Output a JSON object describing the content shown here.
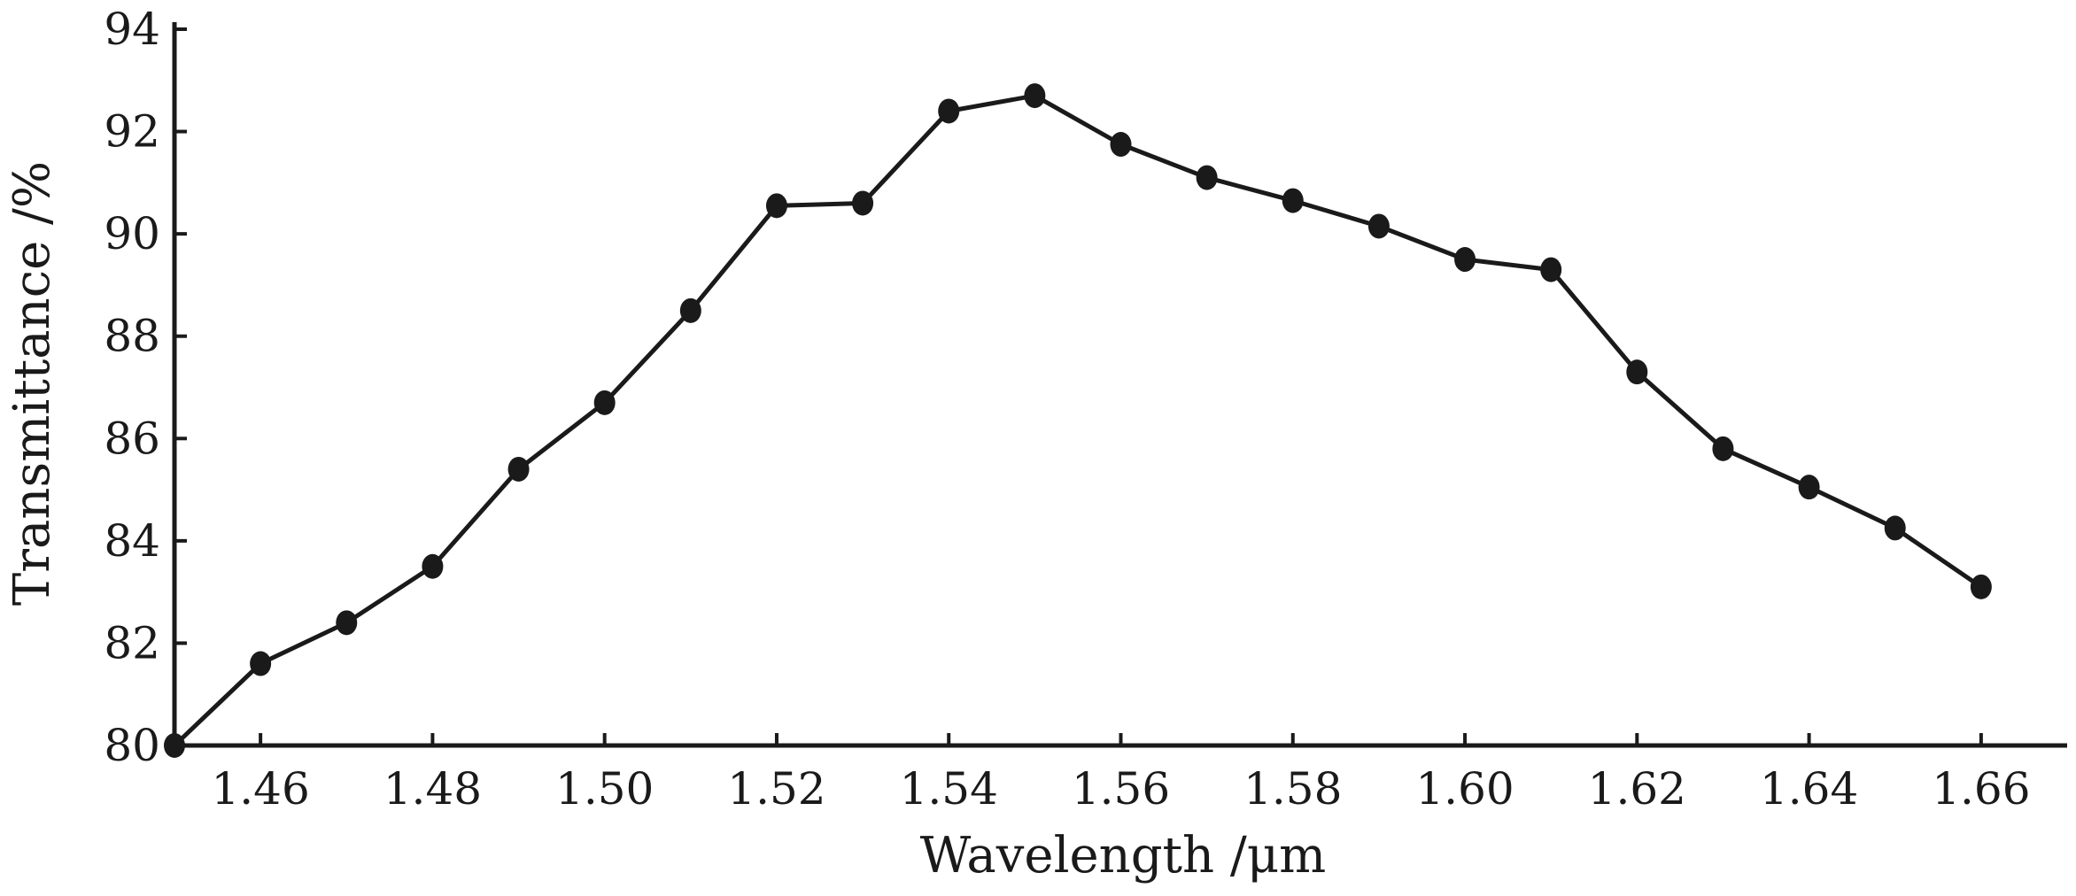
{
  "chart_data": {
    "type": "line",
    "title": "",
    "xlabel": "Wavelength /μm",
    "ylabel": "Transmittance /%",
    "xlim": [
      1.45,
      1.67
    ],
    "ylim": [
      80,
      94
    ],
    "x_ticks": [
      "1.46",
      "1.48",
      "1.50",
      "1.52",
      "1.54",
      "1.56",
      "1.58",
      "1.60",
      "1.62",
      "1.64",
      "1.66"
    ],
    "y_ticks": [
      "80",
      "82",
      "84",
      "86",
      "88",
      "90",
      "92",
      "94"
    ],
    "grid": false,
    "legend": "none",
    "series": [
      {
        "x": [
          1.45,
          1.46,
          1.47,
          1.48,
          1.49,
          1.5,
          1.51,
          1.52,
          1.53,
          1.54,
          1.55,
          1.56,
          1.57,
          1.58,
          1.59,
          1.6,
          1.61,
          1.62,
          1.63,
          1.64,
          1.65,
          1.66
        ],
        "y": [
          80.0,
          81.6,
          82.4,
          83.5,
          85.4,
          86.7,
          88.5,
          90.55,
          90.6,
          92.4,
          92.7,
          91.75,
          91.1,
          90.65,
          90.15,
          89.5,
          89.3,
          87.3,
          85.8,
          85.05,
          84.25,
          83.1
        ],
        "color": "#1a1a1a",
        "marker": "circle"
      }
    ]
  }
}
